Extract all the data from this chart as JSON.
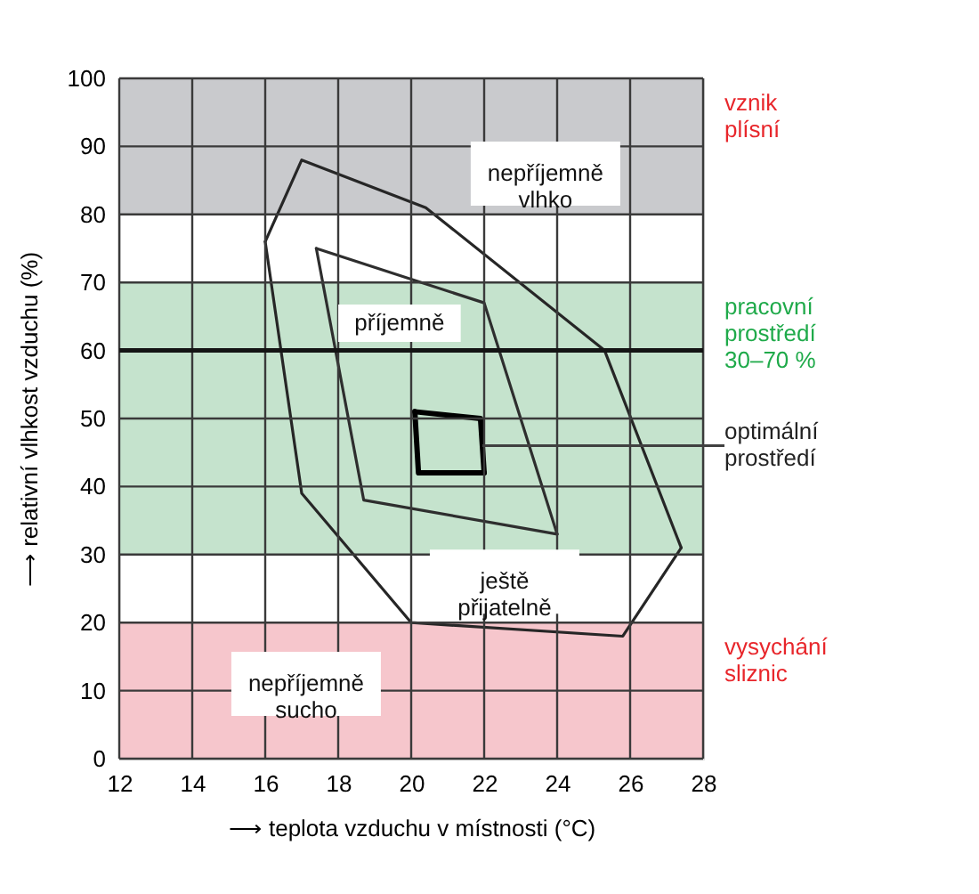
{
  "chart_data": {
    "type": "line",
    "xlabel": "⟶ teplota vzduchu v místnosti (°C)",
    "ylabel": "⟶ relativní vlhkost vzduchu (%)",
    "xlim": [
      12,
      28
    ],
    "xticks": [
      12,
      14,
      16,
      18,
      20,
      22,
      24,
      26,
      28
    ],
    "ylim": [
      0,
      100
    ],
    "yticks": [
      0,
      10,
      20,
      30,
      40,
      50,
      60,
      70,
      80,
      90,
      100
    ],
    "grid": true,
    "marker": "none",
    "line_style": "solid",
    "series": [
      {
        "color": "#262626",
        "x": [
          16,
          17,
          20.4,
          25.3,
          27.4
        ],
        "values": [
          76,
          88,
          81,
          60,
          31
        ]
      },
      {
        "color": "#262626",
        "x": [
          16,
          17,
          20,
          25.8,
          27.4
        ],
        "values": [
          76,
          39,
          20,
          18,
          31
        ]
      },
      {
        "color": "#2e2e2e",
        "x": [
          17.4,
          22,
          24
        ],
        "values": [
          75,
          67,
          33
        ]
      },
      {
        "color": "#2e2e2e",
        "x": [
          17.4,
          18.7,
          24
        ],
        "values": [
          75,
          38,
          33
        ]
      },
      {
        "color": "#000000",
        "x": [
          20.1,
          21.9,
          22
        ],
        "values": [
          51,
          50,
          42
        ]
      },
      {
        "color": "#000000",
        "x": [
          20.1,
          20.2,
          22
        ],
        "values": [
          51,
          42,
          42
        ]
      }
    ],
    "bands": [
      {
        "axis": "y",
        "from": 80,
        "to": 100,
        "label": "vznik\nplísní",
        "color": "#c9cacd"
      },
      {
        "axis": "y",
        "from": 30,
        "to": 70,
        "label": "pracovní\nprostředí\n30–70 %",
        "color": "#c5e3cd"
      },
      {
        "axis": "y",
        "from": 0,
        "to": 20,
        "label": "vysychání\nsliznic",
        "color": "#f6c6cc"
      }
    ],
    "ref_lines": [
      {
        "axis": "y",
        "value": 60,
        "color": "#141414"
      }
    ],
    "annotations": [
      "nepříjemně\nvlhko",
      "příjemně",
      "ještě\npřijatelně",
      "nepříjemně\nsucho",
      {
        "text": "optimální\nprostředí",
        "x": 21.95,
        "y": 46
      }
    ]
  }
}
